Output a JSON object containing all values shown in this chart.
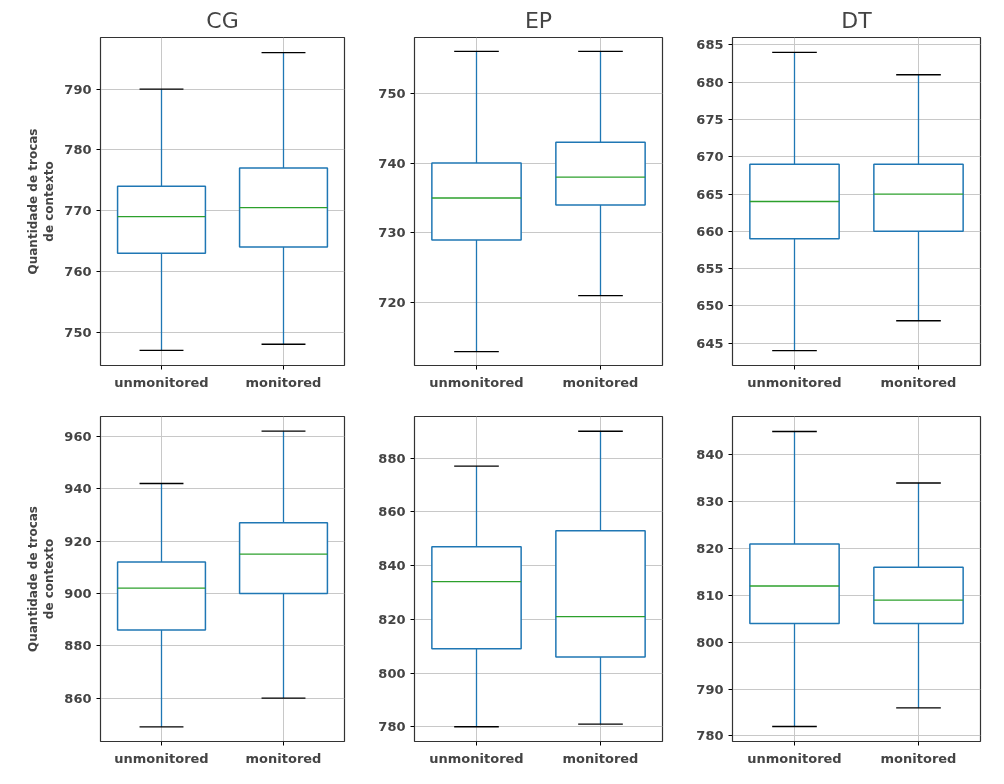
{
  "chart_data": [
    {
      "type": "box",
      "title": "CG",
      "ylabel": "Quantidade de trocas\nde contexto",
      "categories": [
        "unmonitored",
        "monitored"
      ],
      "boxes": [
        {
          "low": 747,
          "q1": 763,
          "median": 769,
          "q3": 774,
          "high": 790
        },
        {
          "low": 748,
          "q1": 764,
          "median": 770.5,
          "q3": 777,
          "high": 796
        }
      ],
      "ylim": [
        744.5,
        798.5
      ],
      "yticks": [
        750,
        760,
        770,
        780,
        790
      ],
      "grid": true
    },
    {
      "type": "box",
      "title": "EP",
      "categories": [
        "unmonitored",
        "monitored"
      ],
      "boxes": [
        {
          "low": 713,
          "q1": 729,
          "median": 735,
          "q3": 740,
          "high": 756
        },
        {
          "low": 721,
          "q1": 734,
          "median": 738,
          "q3": 743,
          "high": 756
        }
      ],
      "ylim": [
        711,
        758
      ],
      "yticks": [
        720,
        730,
        740,
        750
      ],
      "grid": true
    },
    {
      "type": "box",
      "title": "DT",
      "categories": [
        "unmonitored",
        "monitored"
      ],
      "boxes": [
        {
          "low": 644,
          "q1": 659,
          "median": 664,
          "q3": 669,
          "high": 684
        },
        {
          "low": 648,
          "q1": 660,
          "median": 665,
          "q3": 669,
          "high": 681
        }
      ],
      "ylim": [
        642,
        686
      ],
      "yticks": [
        645,
        650,
        655,
        660,
        665,
        670,
        675,
        680,
        685
      ],
      "grid": true
    },
    {
      "type": "box",
      "ylabel": "Quantidade de trocas\nde contexto",
      "categories": [
        "unmonitored",
        "monitored"
      ],
      "boxes": [
        {
          "low": 849,
          "q1": 886,
          "median": 902,
          "q3": 912,
          "high": 942
        },
        {
          "low": 860,
          "q1": 900,
          "median": 915,
          "q3": 927,
          "high": 962
        }
      ],
      "ylim": [
        843.4,
        967.6
      ],
      "yticks": [
        860,
        880,
        900,
        920,
        940,
        960
      ],
      "grid": true
    },
    {
      "type": "box",
      "categories": [
        "unmonitored",
        "monitored"
      ],
      "boxes": [
        {
          "low": 780,
          "q1": 809,
          "median": 834,
          "q3": 847,
          "high": 877
        },
        {
          "low": 781,
          "q1": 806,
          "median": 821,
          "q3": 853,
          "high": 890
        }
      ],
      "ylim": [
        774.5,
        895.5
      ],
      "yticks": [
        780,
        800,
        820,
        840,
        860,
        880
      ],
      "grid": true
    },
    {
      "type": "box",
      "categories": [
        "unmonitored",
        "monitored"
      ],
      "boxes": [
        {
          "low": 782,
          "q1": 804,
          "median": 812,
          "q3": 821,
          "high": 845
        },
        {
          "low": 786,
          "q1": 804,
          "median": 809,
          "q3": 816,
          "high": 834
        }
      ],
      "ylim": [
        778.8,
        848.2
      ],
      "yticks": [
        780,
        790,
        800,
        810,
        820,
        830,
        840
      ],
      "grid": true
    }
  ]
}
